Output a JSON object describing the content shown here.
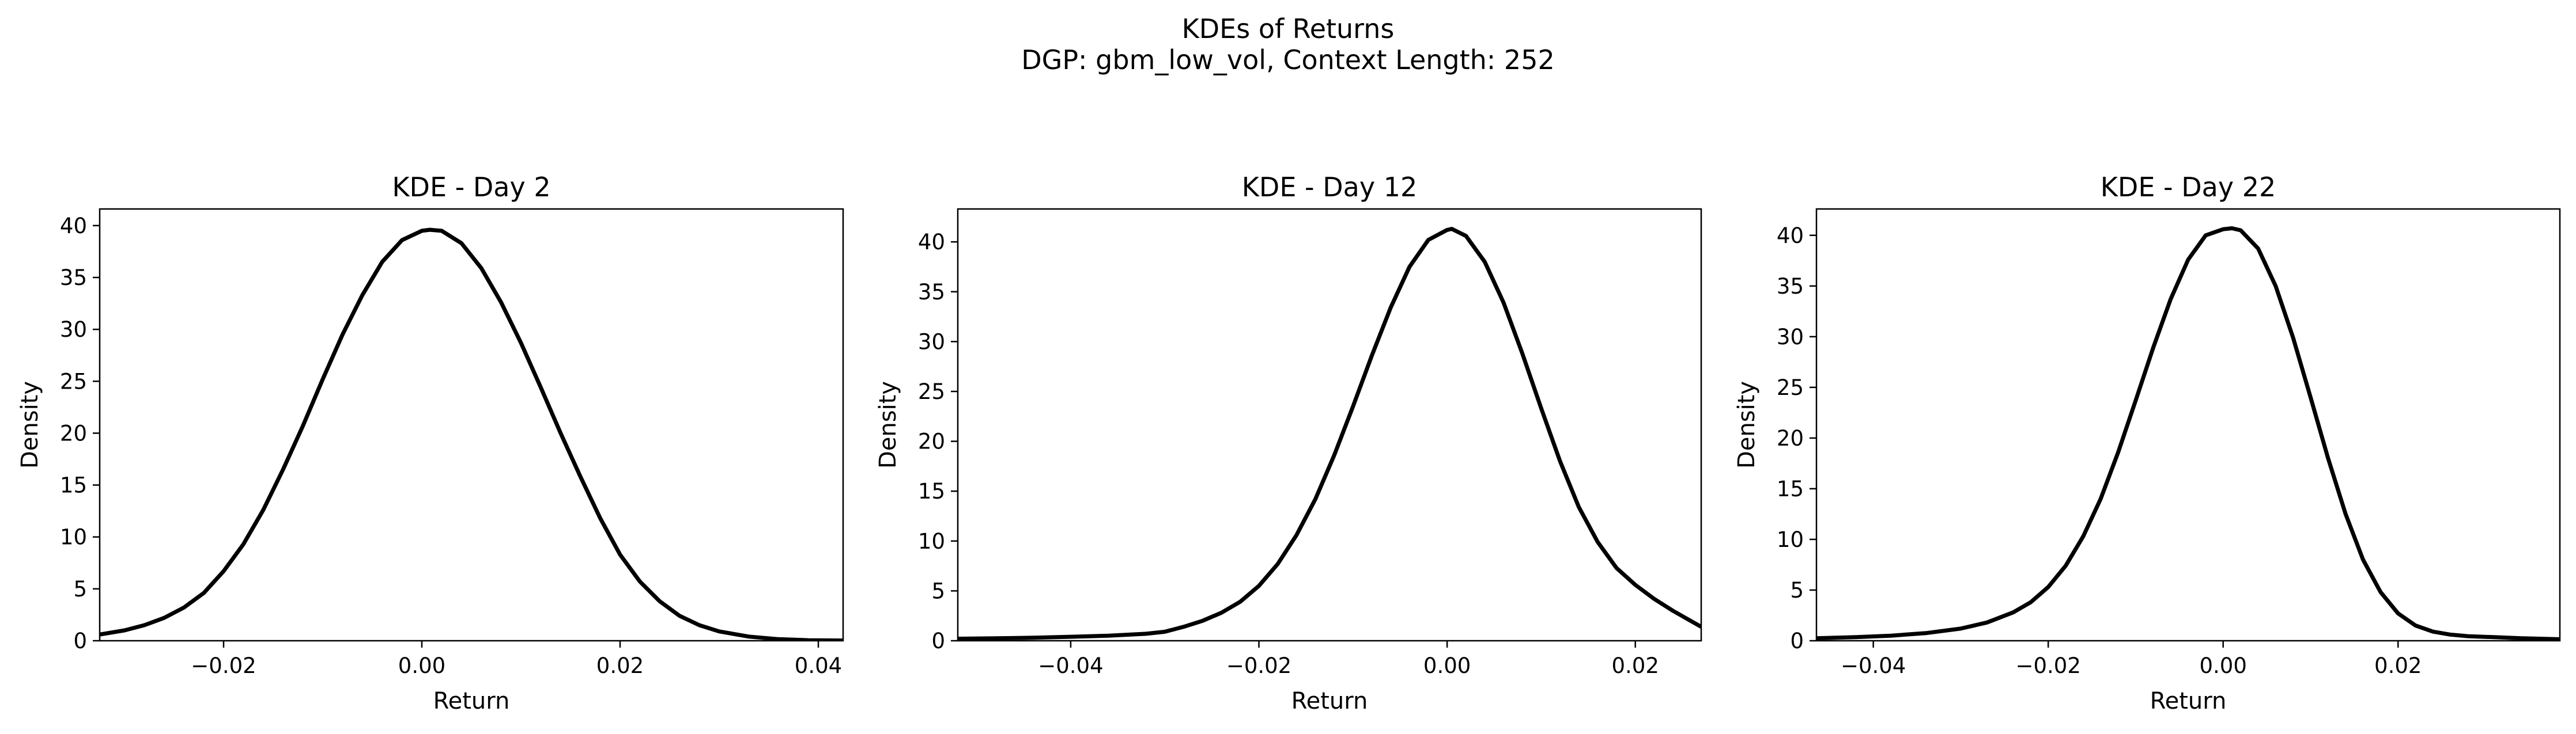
{
  "figure": {
    "title": "KDEs of Returns",
    "subtitle": "DGP: gbm_low_vol, Context Length: 252"
  },
  "chart_data": [
    {
      "type": "line",
      "title": "KDE - Day 2",
      "xlabel": "Return",
      "ylabel": "Density",
      "xlim": [
        -0.0325,
        0.0425
      ],
      "ylim": [
        0,
        41.6
      ],
      "xticks": [
        -0.02,
        0.0,
        0.02,
        0.04
      ],
      "xtick_labels": [
        "−0.02",
        "0.00",
        "0.02",
        "0.04"
      ],
      "yticks": [
        0,
        5,
        10,
        15,
        20,
        25,
        30,
        35,
        40
      ],
      "ytick_labels": [
        "0",
        "5",
        "10",
        "15",
        "20",
        "25",
        "30",
        "35",
        "40"
      ],
      "grid": false,
      "series": [
        {
          "color": "#000000",
          "x": [
            -0.0325,
            -0.03,
            -0.028,
            -0.026,
            -0.024,
            -0.022,
            -0.02,
            -0.018,
            -0.016,
            -0.014,
            -0.012,
            -0.01,
            -0.008,
            -0.006,
            -0.004,
            -0.002,
            0.0,
            0.0008,
            0.002,
            0.004,
            0.006,
            0.008,
            0.01,
            0.012,
            0.014,
            0.016,
            0.018,
            0.02,
            0.022,
            0.024,
            0.026,
            0.028,
            0.03,
            0.033,
            0.036,
            0.039,
            0.0425
          ],
          "y": [
            0.6,
            1.0,
            1.5,
            2.2,
            3.2,
            4.6,
            6.7,
            9.3,
            12.6,
            16.5,
            20.7,
            25.2,
            29.5,
            33.3,
            36.5,
            38.6,
            39.5,
            39.6,
            39.5,
            38.3,
            35.9,
            32.6,
            28.7,
            24.4,
            20.0,
            15.8,
            11.8,
            8.3,
            5.7,
            3.8,
            2.4,
            1.5,
            0.9,
            0.4,
            0.15,
            0.05,
            0.02
          ]
        }
      ]
    },
    {
      "type": "line",
      "title": "KDE - Day 12",
      "xlabel": "Return",
      "ylabel": "Density",
      "xlim": [
        -0.052,
        0.027
      ],
      "ylim": [
        0,
        43.3
      ],
      "xticks": [
        -0.04,
        -0.02,
        0.0,
        0.02
      ],
      "xtick_labels": [
        "−0.04",
        "−0.02",
        "0.00",
        "0.02"
      ],
      "yticks": [
        0,
        5,
        10,
        15,
        20,
        25,
        30,
        35,
        40
      ],
      "ytick_labels": [
        "0",
        "5",
        "10",
        "15",
        "20",
        "25",
        "30",
        "35",
        "40"
      ],
      "grid": false,
      "series": [
        {
          "color": "#000000",
          "x": [
            -0.052,
            -0.048,
            -0.044,
            -0.04,
            -0.036,
            -0.032,
            -0.03,
            -0.028,
            -0.026,
            -0.024,
            -0.022,
            -0.02,
            -0.018,
            -0.016,
            -0.014,
            -0.012,
            -0.01,
            -0.008,
            -0.006,
            -0.004,
            -0.002,
            0.0,
            0.0005,
            0.002,
            0.004,
            0.006,
            0.008,
            0.01,
            0.012,
            0.014,
            0.016,
            0.018,
            0.02,
            0.022,
            0.024,
            0.027
          ],
          "y": [
            0.2,
            0.25,
            0.3,
            0.4,
            0.5,
            0.7,
            0.9,
            1.4,
            2.0,
            2.8,
            3.9,
            5.5,
            7.7,
            10.6,
            14.2,
            18.6,
            23.5,
            28.6,
            33.4,
            37.5,
            40.2,
            41.2,
            41.3,
            40.6,
            38.0,
            33.9,
            28.8,
            23.3,
            18.0,
            13.4,
            9.9,
            7.3,
            5.6,
            4.2,
            3.0,
            1.4
          ]
        }
      ]
    },
    {
      "type": "line",
      "title": "KDE - Day 22",
      "xlabel": "Return",
      "ylabel": "Density",
      "xlim": [
        -0.0465,
        0.0385
      ],
      "ylim": [
        0,
        42.6
      ],
      "xticks": [
        -0.04,
        -0.02,
        0.0,
        0.02
      ],
      "xtick_labels": [
        "−0.04",
        "−0.02",
        "0.00",
        "0.02"
      ],
      "yticks": [
        0,
        5,
        10,
        15,
        20,
        25,
        30,
        35,
        40
      ],
      "ytick_labels": [
        "0",
        "5",
        "10",
        "15",
        "20",
        "25",
        "30",
        "35",
        "40"
      ],
      "grid": false,
      "series": [
        {
          "color": "#000000",
          "x": [
            -0.0465,
            -0.042,
            -0.038,
            -0.034,
            -0.03,
            -0.027,
            -0.024,
            -0.022,
            -0.02,
            -0.018,
            -0.016,
            -0.014,
            -0.012,
            -0.01,
            -0.008,
            -0.006,
            -0.004,
            -0.002,
            0.0,
            0.001,
            0.002,
            0.004,
            0.006,
            0.008,
            0.01,
            0.012,
            0.014,
            0.016,
            0.018,
            0.02,
            0.022,
            0.024,
            0.026,
            0.028,
            0.031,
            0.034,
            0.0385
          ],
          "y": [
            0.25,
            0.35,
            0.5,
            0.75,
            1.2,
            1.8,
            2.8,
            3.8,
            5.3,
            7.4,
            10.3,
            14.0,
            18.6,
            23.7,
            28.9,
            33.7,
            37.6,
            40.0,
            40.6,
            40.7,
            40.5,
            38.7,
            35.0,
            29.9,
            24.0,
            18.0,
            12.5,
            8.0,
            4.8,
            2.7,
            1.5,
            0.9,
            0.6,
            0.45,
            0.35,
            0.25,
            0.15
          ]
        }
      ]
    }
  ]
}
